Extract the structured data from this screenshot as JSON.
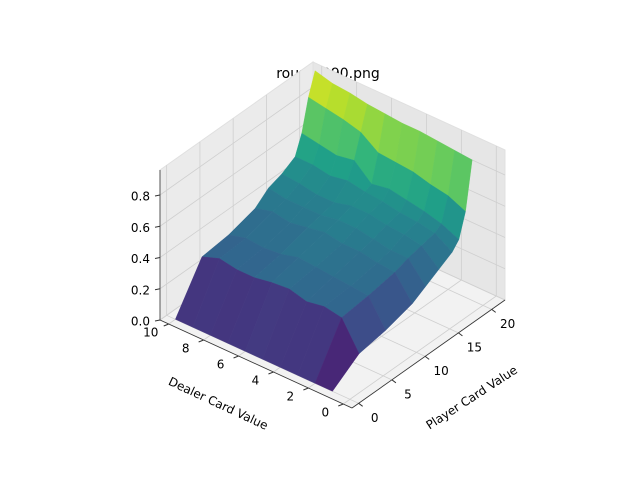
{
  "chart_data": {
    "type": "surface",
    "title": "round-990.png",
    "x_label": "Player Card Value",
    "y_label": "Dealer Card Value",
    "x": [
      0,
      4,
      8,
      12,
      14,
      16,
      18,
      19,
      20,
      21
    ],
    "y": [
      1,
      2,
      3,
      4,
      5,
      6,
      7,
      8,
      9,
      10
    ],
    "z": [
      [
        0,
        0.12,
        0.15,
        0.2,
        0.25,
        0.3,
        0.35,
        0.4,
        0.55,
        0.85
      ],
      [
        0,
        0.3,
        0.32,
        0.35,
        0.38,
        0.4,
        0.42,
        0.45,
        0.6,
        0.86
      ],
      [
        0,
        0.32,
        0.33,
        0.36,
        0.38,
        0.42,
        0.44,
        0.48,
        0.62,
        0.87
      ],
      [
        0,
        0.3,
        0.34,
        0.38,
        0.4,
        0.43,
        0.45,
        0.5,
        0.65,
        0.88
      ],
      [
        0,
        0.33,
        0.35,
        0.38,
        0.42,
        0.45,
        0.47,
        0.52,
        0.66,
        0.88
      ],
      [
        0,
        0.32,
        0.36,
        0.4,
        0.42,
        0.45,
        0.48,
        0.5,
        0.67,
        0.89
      ],
      [
        0,
        0.3,
        0.33,
        0.38,
        0.4,
        0.42,
        0.5,
        0.6,
        0.75,
        0.9
      ],
      [
        0,
        0.3,
        0.32,
        0.36,
        0.4,
        0.42,
        0.48,
        0.58,
        0.78,
        0.92
      ],
      [
        0,
        0.32,
        0.33,
        0.38,
        0.4,
        0.44,
        0.5,
        0.6,
        0.8,
        0.93
      ],
      [
        0,
        0.28,
        0.3,
        0.35,
        0.42,
        0.45,
        0.5,
        0.62,
        0.82,
        0.96
      ]
    ],
    "xlim": [
      -1,
      22
    ],
    "ylim": [
      -0.5,
      10.5
    ],
    "zlim": [
      0,
      0.96
    ],
    "xticks": [
      0,
      5,
      10,
      15,
      20
    ],
    "yticks": [
      0,
      2,
      4,
      6,
      8,
      10
    ],
    "zticks": [
      {
        "value": 0,
        "label": "0.0"
      },
      0.2,
      0.4,
      0.6,
      0.8
    ],
    "colormap": "viridis",
    "grid": true
  }
}
